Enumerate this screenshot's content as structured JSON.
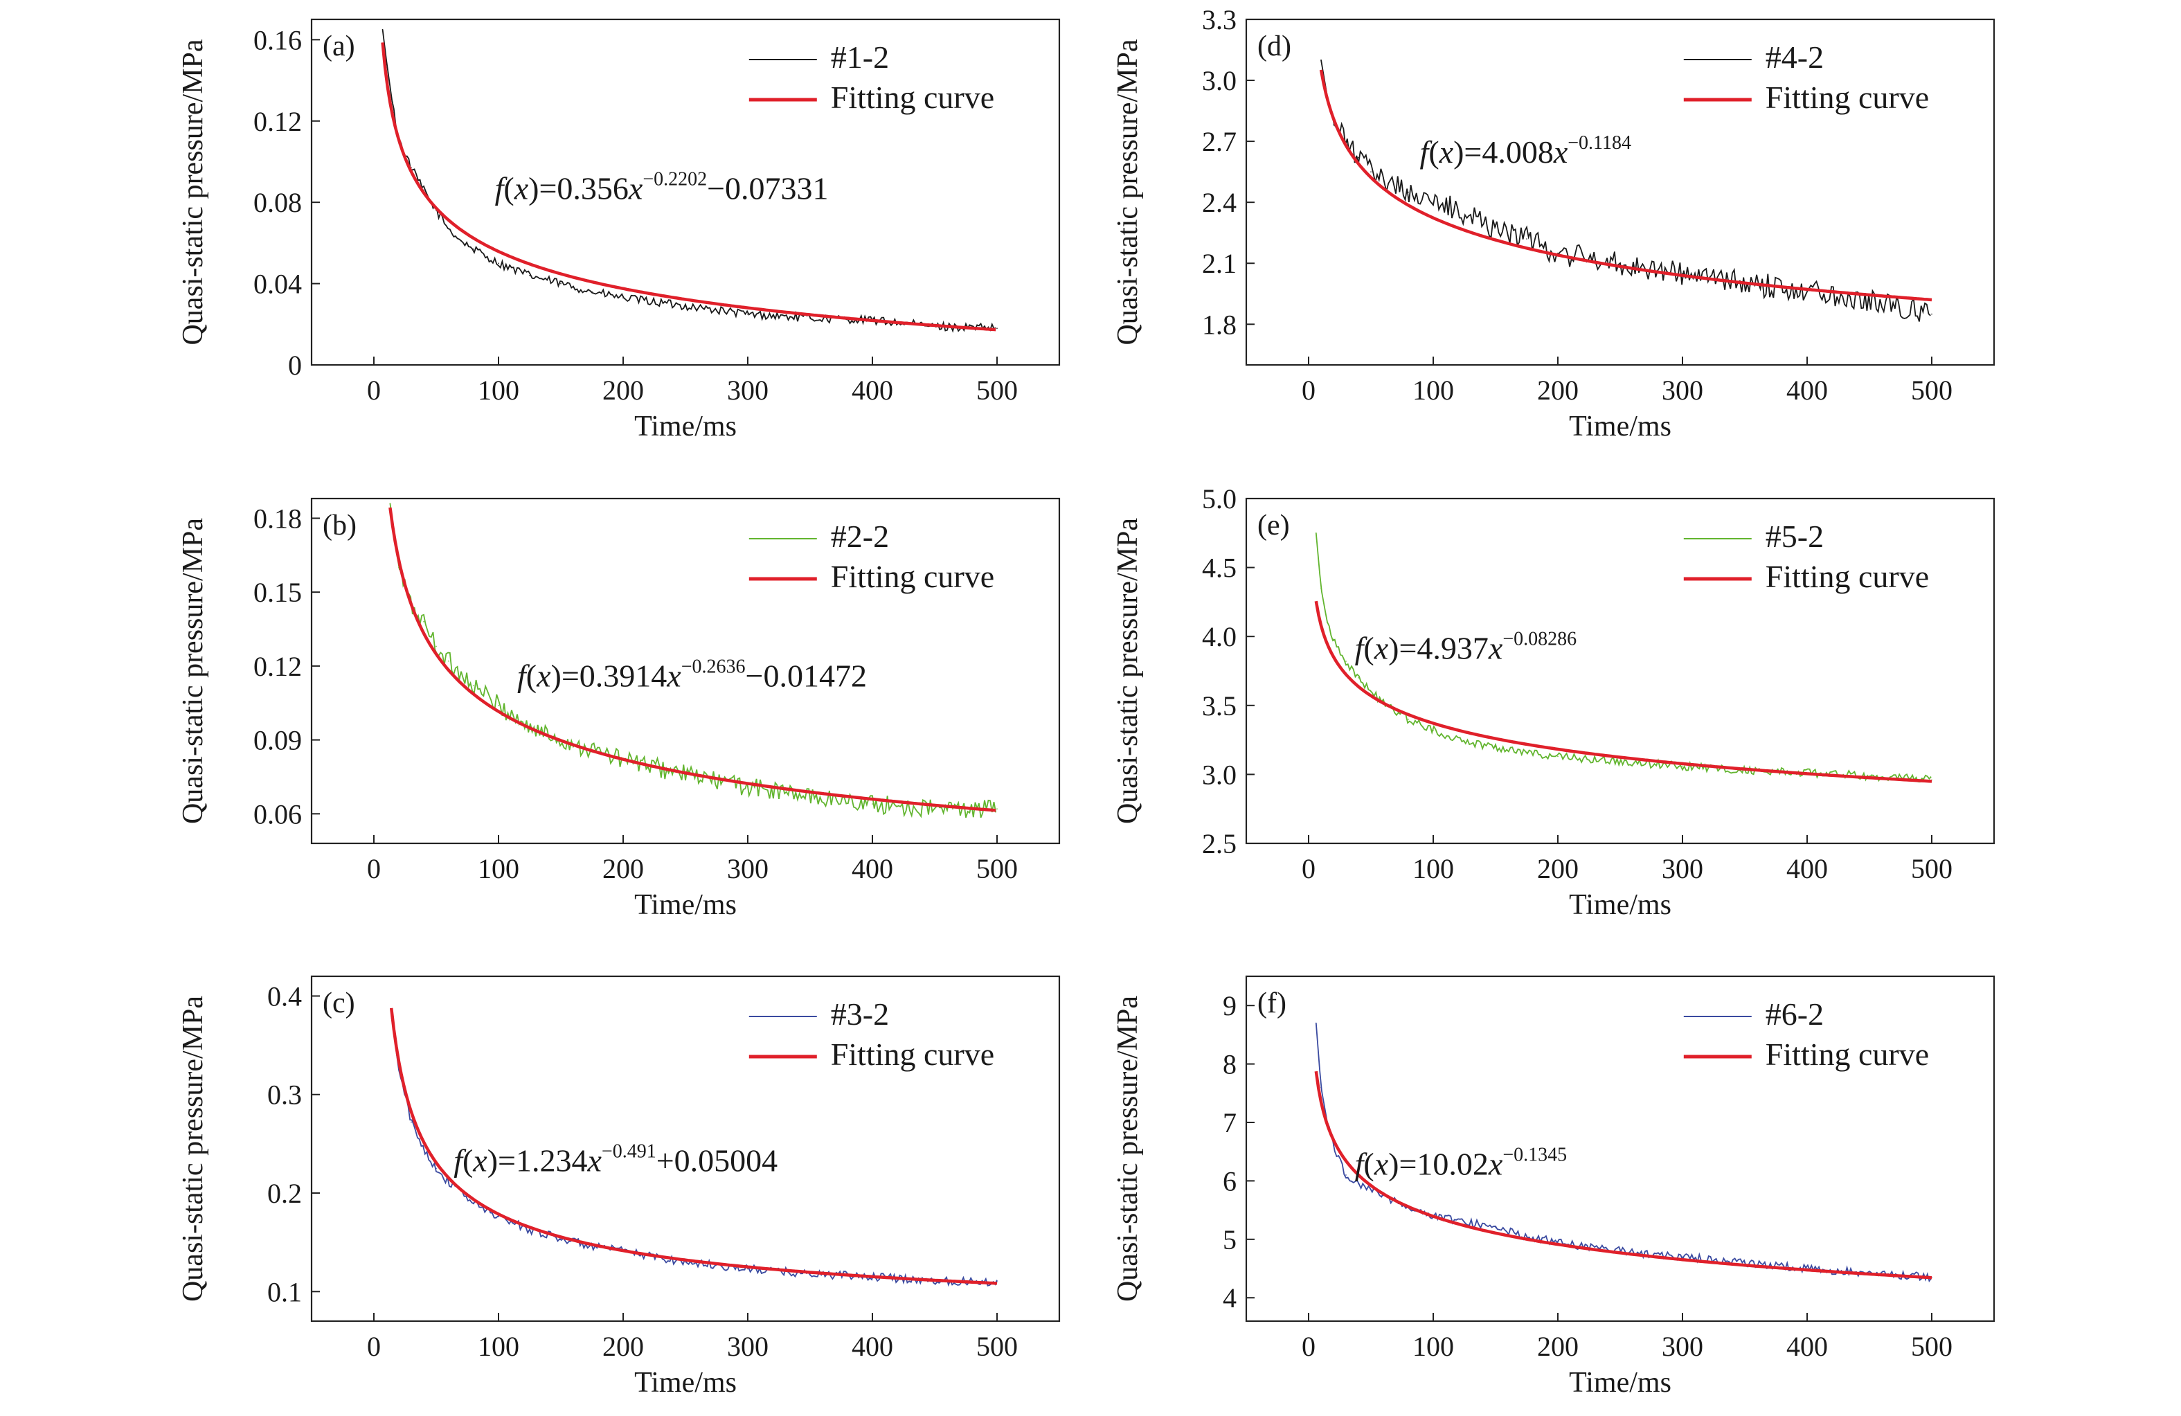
{
  "chart_data": [
    {
      "type": "line",
      "panel_label": "(a)",
      "xlabel": "Time/ms",
      "ylabel": "Quasi-static pressure/MPa",
      "xlim": [
        -50,
        550
      ],
      "ylim": [
        0,
        0.17
      ],
      "xticks": [
        "0",
        "100",
        "200",
        "300",
        "400",
        "500"
      ],
      "yticks": [
        "0",
        "0.04",
        "0.08",
        "0.12",
        "0.16"
      ],
      "grid": false,
      "legend_position": "top-right",
      "series": [
        {
          "name": "#1-2",
          "color": "#1a1a1a",
          "role": "measured",
          "x": [
            7,
            10,
            15,
            20,
            30,
            40,
            50,
            60,
            70,
            80,
            100,
            125,
            150,
            175,
            200,
            250,
            300,
            350,
            400,
            450,
            500
          ],
          "y": [
            0.165,
            0.15,
            0.128,
            0.111,
            0.097,
            0.086,
            0.076,
            0.067,
            0.061,
            0.057,
            0.05,
            0.044,
            0.04,
            0.036,
            0.033,
            0.029,
            0.025,
            0.023,
            0.022,
            0.019,
            0.018
          ]
        },
        {
          "name": "Fitting curve",
          "color": "#e0202a",
          "role": "fit",
          "a": 0.356,
          "b": -0.2202,
          "c": -0.07331,
          "x_start": 7,
          "x_end": 500
        }
      ],
      "equation": {
        "f": "f",
        "x": "x",
        "eq_open": "(",
        "eq_close": ")=",
        "coef": "0.356",
        "exp": "−0.2202",
        "tail": "−0.07331"
      }
    },
    {
      "type": "line",
      "panel_label": "(b)",
      "xlabel": "Time/ms",
      "ylabel": "Quasi-static pressure/MPa",
      "xlim": [
        -50,
        550
      ],
      "ylim": [
        0.048,
        0.188
      ],
      "xticks": [
        "0",
        "100",
        "200",
        "300",
        "400",
        "500"
      ],
      "yticks": [
        "0.06",
        "0.09",
        "0.12",
        "0.15",
        "0.18"
      ],
      "grid": false,
      "legend_position": "top-right",
      "series": [
        {
          "name": "#2-2",
          "color": "#62b52f",
          "role": "measured",
          "x": [
            13,
            20,
            30,
            40,
            50,
            60,
            80,
            100,
            125,
            150,
            175,
            200,
            250,
            300,
            350,
            400,
            450,
            500
          ],
          "y": [
            0.186,
            0.16,
            0.144,
            0.138,
            0.128,
            0.122,
            0.112,
            0.104,
            0.095,
            0.09,
            0.086,
            0.082,
            0.076,
            0.071,
            0.067,
            0.064,
            0.062,
            0.062
          ]
        },
        {
          "name": "Fitting curve",
          "color": "#e0202a",
          "role": "fit",
          "a": 0.3914,
          "b": -0.2636,
          "c": -0.01472,
          "x_start": 13,
          "x_end": 500
        }
      ],
      "equation": {
        "f": "f",
        "x": "x",
        "eq_open": "(",
        "eq_close": ")=",
        "coef": "0.3914",
        "exp": "−0.2636",
        "tail": "−0.01472"
      }
    },
    {
      "type": "line",
      "panel_label": "(c)",
      "xlabel": "Time/ms",
      "ylabel": "Quasi-static pressure/MPa",
      "xlim": [
        -50,
        550
      ],
      "ylim": [
        0.07,
        0.42
      ],
      "xticks": [
        "0",
        "100",
        "200",
        "300",
        "400",
        "500"
      ],
      "yticks": [
        "0.1",
        "0.2",
        "0.3",
        "0.4"
      ],
      "grid": false,
      "legend_position": "top-right",
      "series": [
        {
          "name": "#3-2",
          "color": "#3a4aa0",
          "role": "measured",
          "x": [
            14,
            20,
            30,
            40,
            50,
            60,
            80,
            100,
            125,
            150,
            175,
            200,
            250,
            300,
            350,
            400,
            450,
            500
          ],
          "y": [
            0.38,
            0.325,
            0.272,
            0.245,
            0.225,
            0.211,
            0.19,
            0.176,
            0.163,
            0.154,
            0.146,
            0.141,
            0.13,
            0.123,
            0.118,
            0.115,
            0.111,
            0.11
          ]
        },
        {
          "name": "Fitting curve",
          "color": "#e0202a",
          "role": "fit",
          "a": 1.234,
          "b": -0.491,
          "c": 0.05004,
          "x_start": 14,
          "x_end": 500
        }
      ],
      "equation": {
        "f": "f",
        "x": "x",
        "eq_open": "(",
        "eq_close": ")=",
        "coef": "1.234",
        "exp": "−0.491",
        "tail": "+0.05004"
      }
    },
    {
      "type": "line",
      "panel_label": "(d)",
      "xlabel": "Time/ms",
      "ylabel": "Quasi-static pressure/MPa",
      "xlim": [
        -50,
        550
      ],
      "ylim": [
        1.6,
        3.3
      ],
      "xticks": [
        "0",
        "100",
        "200",
        "300",
        "400",
        "500"
      ],
      "yticks": [
        "1.8",
        "2.1",
        "2.4",
        "2.7",
        "3.0",
        "3.3"
      ],
      "grid": false,
      "legend_position": "top-right",
      "series": [
        {
          "name": "#4-2",
          "color": "#1a1a1a",
          "role": "measured",
          "x": [
            10,
            15,
            20,
            30,
            40,
            50,
            60,
            80,
            100,
            120,
            150,
            175,
            200,
            250,
            300,
            350,
            400,
            450,
            500
          ],
          "y": [
            3.1,
            2.92,
            2.78,
            2.7,
            2.62,
            2.55,
            2.52,
            2.45,
            2.4,
            2.36,
            2.28,
            2.22,
            2.15,
            2.1,
            2.05,
            2.0,
            1.97,
            1.92,
            1.85
          ]
        },
        {
          "name": "Fitting curve",
          "color": "#e0202a",
          "role": "fit",
          "a": 4.008,
          "b": -0.1184,
          "c": 0,
          "x_start": 10,
          "x_end": 500
        }
      ],
      "equation": {
        "f": "f",
        "x": "x",
        "eq_open": "(",
        "eq_close": ")=",
        "coef": "4.008",
        "exp": "−0.1184",
        "tail": ""
      }
    },
    {
      "type": "line",
      "panel_label": "(e)",
      "xlabel": "Time/ms",
      "ylabel": "Quasi-static pressure/MPa",
      "xlim": [
        -50,
        550
      ],
      "ylim": [
        2.5,
        5.0
      ],
      "xticks": [
        "0",
        "100",
        "200",
        "300",
        "400",
        "500"
      ],
      "yticks": [
        "2.5",
        "3.0",
        "3.5",
        "4.0",
        "4.5",
        "5.0"
      ],
      "grid": false,
      "legend_position": "top-right",
      "series": [
        {
          "name": "#5-2",
          "color": "#62b52f",
          "role": "measured",
          "x": [
            6,
            10,
            15,
            20,
            30,
            40,
            50,
            60,
            80,
            100,
            125,
            150,
            175,
            200,
            250,
            300,
            350,
            400,
            450,
            500
          ],
          "y": [
            4.75,
            4.35,
            4.1,
            3.98,
            3.82,
            3.7,
            3.6,
            3.52,
            3.4,
            3.32,
            3.24,
            3.2,
            3.16,
            3.13,
            3.09,
            3.06,
            3.03,
            3.01,
            2.99,
            2.96
          ]
        },
        {
          "name": "Fitting curve",
          "color": "#e0202a",
          "role": "fit",
          "a": 4.937,
          "b": -0.08286,
          "c": 0,
          "x_start": 6,
          "x_end": 500
        }
      ],
      "equation": {
        "f": "f",
        "x": "x",
        "eq_open": "(",
        "eq_close": ")=",
        "coef": "4.937",
        "exp": "−0.08286",
        "tail": ""
      }
    },
    {
      "type": "line",
      "panel_label": "(f)",
      "xlabel": "Time/ms",
      "ylabel": "Quasi-static pressure/MPa",
      "xlim": [
        -50,
        550
      ],
      "ylim": [
        3.6,
        9.5
      ],
      "xticks": [
        "0",
        "100",
        "200",
        "300",
        "400",
        "500"
      ],
      "yticks": [
        "4",
        "5",
        "6",
        "7",
        "8",
        "9"
      ],
      "grid": false,
      "legend_position": "top-right",
      "series": [
        {
          "name": "#6-2",
          "color": "#3a4aa0",
          "role": "measured",
          "x": [
            6,
            10,
            15,
            20,
            30,
            40,
            50,
            60,
            80,
            100,
            125,
            150,
            175,
            200,
            250,
            300,
            350,
            400,
            450,
            500
          ],
          "y": [
            8.7,
            7.6,
            7.0,
            6.6,
            6.1,
            5.95,
            5.85,
            5.75,
            5.55,
            5.4,
            5.3,
            5.2,
            5.05,
            4.95,
            4.8,
            4.7,
            4.6,
            4.5,
            4.42,
            4.35
          ]
        },
        {
          "name": "Fitting curve",
          "color": "#e0202a",
          "role": "fit",
          "a": 10.02,
          "b": -0.1345,
          "c": 0,
          "x_start": 6,
          "x_end": 500
        }
      ],
      "equation": {
        "f": "f",
        "x": "x",
        "eq_open": "(",
        "eq_close": ")=",
        "coef": "10.02",
        "exp": "−0.1345",
        "tail": ""
      }
    }
  ]
}
